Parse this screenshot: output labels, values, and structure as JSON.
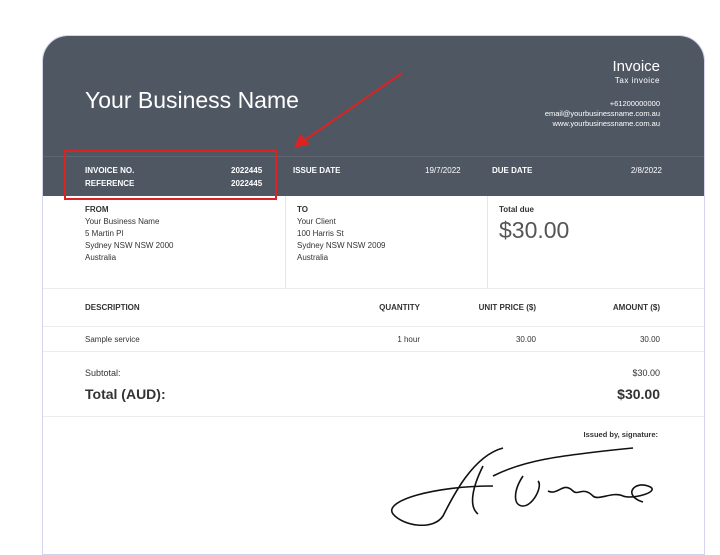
{
  "header": {
    "business_name": "Your Business Name",
    "doc_title": "Invoice",
    "doc_subtitle": "Tax invoice",
    "phone": "+61200000000",
    "email": "email@yourbusinessname.com.au",
    "website": "www.yourbusinessname.com.au"
  },
  "meta": {
    "invoice_no_label": "INVOICE NO.",
    "invoice_no": "2022445",
    "reference_label": "REFERENCE",
    "reference": "2022445",
    "issue_date_label": "ISSUE DATE",
    "issue_date": "19/7/2022",
    "due_date_label": "DUE DATE",
    "due_date": "2/8/2022"
  },
  "from": {
    "label": "FROM",
    "lines": [
      "Your Business Name",
      "5 Martin Pl",
      "Sydney NSW NSW 2000",
      "Australia"
    ]
  },
  "to": {
    "label": "TO",
    "lines": [
      "Your Client",
      "100 Harris St",
      "Sydney NSW NSW 2009",
      "Australia"
    ]
  },
  "total_due": {
    "label": "Total due",
    "value": "$30.00"
  },
  "table": {
    "headers": [
      "DESCRIPTION",
      "QUANTITY",
      "UNIT PRICE ($)",
      "AMOUNT ($)"
    ],
    "rows": [
      [
        "Sample service",
        "1 hour",
        "30.00",
        "30.00"
      ]
    ]
  },
  "totals": {
    "subtotal_label": "Subtotal:",
    "subtotal": "$30.00",
    "total_label": "Total (AUD):",
    "total": "$30.00"
  },
  "signature": {
    "label": "Issued by, signature:"
  },
  "colors": {
    "header_bg": "#4f5763",
    "annotation": "#dd2222"
  }
}
